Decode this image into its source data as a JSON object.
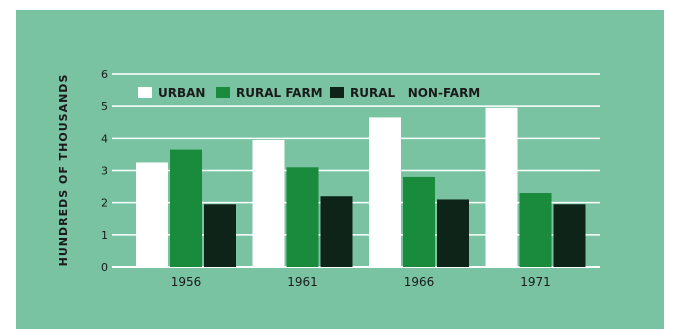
{
  "chart_data": {
    "type": "bar",
    "title": "",
    "xlabel": "",
    "ylabel": "HUNDREDS OF THOUSANDS",
    "ylim": [
      0,
      6
    ],
    "yticks": [
      0,
      1,
      2,
      3,
      4,
      5,
      6
    ],
    "grid": true,
    "legend_position": "top-left",
    "categories": [
      "1956",
      "1961",
      "1966",
      "1971"
    ],
    "series": [
      {
        "name": "URBAN",
        "color": "#ffffff",
        "values": [
          3.25,
          3.95,
          4.65,
          4.95
        ]
      },
      {
        "name": "RURAL FARM",
        "color": "#1a8a3c",
        "values": [
          3.65,
          3.1,
          2.8,
          2.3
        ]
      },
      {
        "name": "RURAL   NON-FARM",
        "color": "#0f2418",
        "values": [
          1.95,
          2.2,
          2.1,
          1.95
        ]
      }
    ]
  }
}
